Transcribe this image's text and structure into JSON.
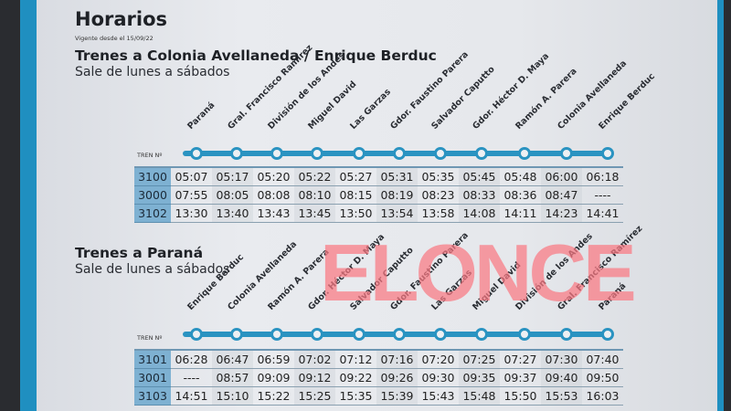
{
  "title": "Horarios",
  "vigente": "Vigente desde el 15/09/22",
  "tren_label": "TREN Nº",
  "watermark": "ELONCE",
  "section1": {
    "heading": "Trenes a Colonia Avellaneda / Enrique Berduc",
    "subtitle": "Sale de lunes a sábados",
    "stations": [
      "Paraná",
      "Gral. Francisco Ramírez",
      "División de los Andes",
      "Miguel David",
      "Las Garzas",
      "Gdor. Faustino Parera",
      "Salvador Caputto",
      "Gdor. Héctor D. Maya",
      "Ramón A. Parera",
      "Colonia Avellaneda",
      "Enrique Berduc"
    ],
    "rows": [
      {
        "train": "3100",
        "times": [
          "05:07",
          "05:17",
          "05:20",
          "05:22",
          "05:27",
          "05:31",
          "05:35",
          "05:45",
          "05:48",
          "06:00",
          "06:18"
        ]
      },
      {
        "train": "3000",
        "times": [
          "07:55",
          "08:05",
          "08:08",
          "08:10",
          "08:15",
          "08:19",
          "08:23",
          "08:33",
          "08:36",
          "08:47",
          "----"
        ]
      },
      {
        "train": "3102",
        "times": [
          "13:30",
          "13:40",
          "13:43",
          "13:45",
          "13:50",
          "13:54",
          "13:58",
          "14:08",
          "14:11",
          "14:23",
          "14:41"
        ]
      }
    ]
  },
  "section2": {
    "heading": "Trenes a Paraná",
    "subtitle": "Sale de lunes a sábados",
    "stations": [
      "Enrique Berduc",
      "Colonia Avellaneda",
      "Ramón A. Parera",
      "Gdor. Héctor D. Maya",
      "Salvador Caputto",
      "Gdor. Faustino Parera",
      "Las Garzas",
      "Miguel David",
      "División de los Andes",
      "Gral. Francisco Ramírez",
      "Paraná"
    ],
    "rows": [
      {
        "train": "3101",
        "times": [
          "06:28",
          "06:47",
          "06:59",
          "07:02",
          "07:12",
          "07:16",
          "07:20",
          "07:25",
          "07:27",
          "07:30",
          "07:40"
        ]
      },
      {
        "train": "3001",
        "times": [
          "----",
          "08:57",
          "09:09",
          "09:12",
          "09:22",
          "09:26",
          "09:30",
          "09:35",
          "09:37",
          "09:40",
          "09:50"
        ]
      },
      {
        "train": "3103",
        "times": [
          "14:51",
          "15:10",
          "15:22",
          "15:25",
          "15:35",
          "15:39",
          "15:43",
          "15:48",
          "15:50",
          "15:53",
          "16:03"
        ]
      }
    ]
  },
  "colors": {
    "line": "#2a93c1",
    "train_cell": "#7eb1d2",
    "watermark": "#fa7882"
  }
}
